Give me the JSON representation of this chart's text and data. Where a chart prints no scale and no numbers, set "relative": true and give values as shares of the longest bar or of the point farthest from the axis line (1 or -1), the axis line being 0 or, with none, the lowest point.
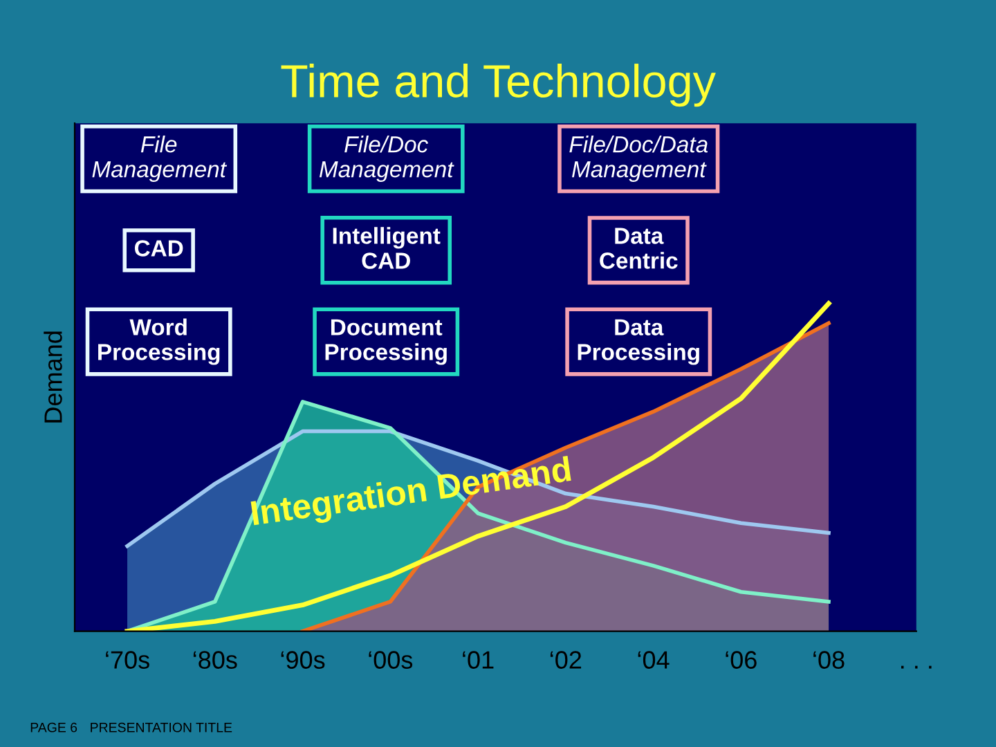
{
  "chart_data": {
    "type": "area",
    "title": "Time and Technology",
    "ylabel": "Demand",
    "relative": true,
    "categories": [
      "‘70s",
      "‘80s",
      "‘90s",
      "‘00s",
      "‘01",
      "‘02",
      "‘04",
      "‘06",
      "‘08",
      ". . ."
    ],
    "series": [
      {
        "color": "#2f64a8",
        "values": [
          0.26,
          0.45,
          0.61,
          0.61,
          0.52,
          0.42,
          0.38,
          0.33,
          0.3,
          null
        ]
      },
      {
        "color": "#1cb49a",
        "values": [
          0.0,
          0.09,
          0.7,
          0.62,
          0.36,
          0.27,
          0.2,
          0.12,
          0.09,
          null
        ]
      },
      {
        "color": "#8c5a84",
        "values": [
          null,
          null,
          0.0,
          0.09,
          0.44,
          0.56,
          0.67,
          0.8,
          0.94,
          null
        ]
      },
      {
        "type": "line",
        "name": "Integration Demand",
        "color": "#ffff33",
        "values": [
          0.0,
          0.03,
          0.08,
          0.17,
          0.29,
          0.38,
          0.53,
          0.71,
          1.0,
          null
        ]
      }
    ],
    "annotations": [
      "File Management",
      "File/Doc Management",
      "File/Doc/Data Management",
      "CAD",
      "Intelligent CAD",
      "Data Centric",
      "Word Processing",
      "Document Processing",
      "Data Processing",
      "PAGE 6",
      "PRESENTATION TITLE"
    ],
    "legend": false
  }
}
